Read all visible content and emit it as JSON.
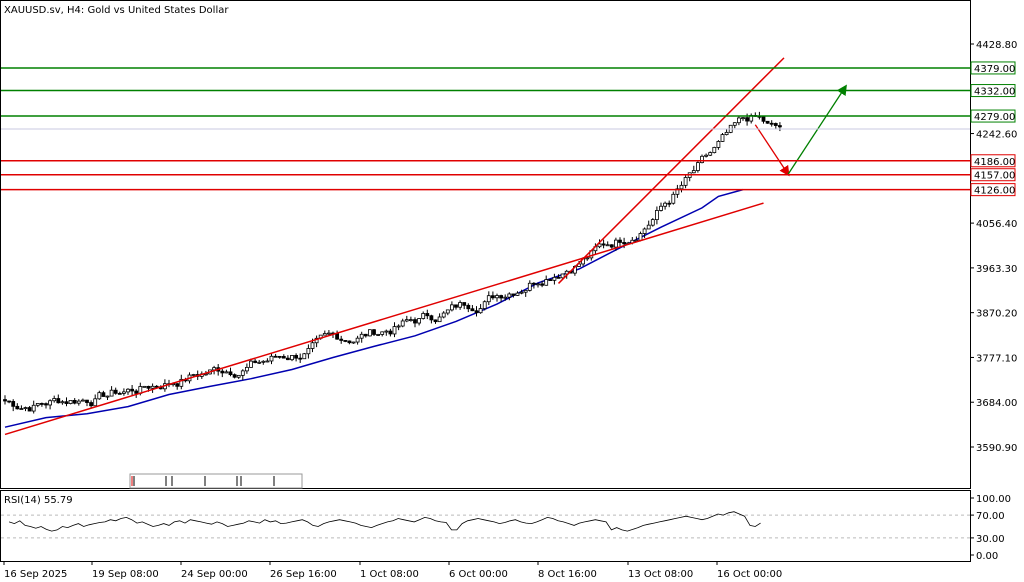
{
  "chart_title": "XAUUSD.sv, H4:  Gold vs United States Dollar",
  "rsi_title": "RSI(14) 55.79",
  "colors": {
    "candle_bull_fill": "#ffffff",
    "candle_bear_fill": "#000000",
    "candle_stroke": "#000000",
    "ma_line": "#0000b0",
    "trendline": "#e00000",
    "resistance": "#008000",
    "support": "#e00000",
    "arrow_down": "#e00000",
    "arrow_up": "#008000",
    "rsi_line": "#000000",
    "level_box_fill": "#ffffff"
  },
  "chart_data": [
    {
      "type": "candlestick",
      "title": "XAUUSD.sv, H4:  Gold vs United States Dollar",
      "ylim": [
        3548,
        4470
      ],
      "y_ticks": [
        "4428.80",
        "4242.60",
        "4056.40",
        "3963.30",
        "3870.20",
        "3777.10",
        "3684.00",
        "3590.90"
      ],
      "x_ticks": [
        "16 Sep 2025",
        "19 Sep 08:00",
        "24 Sep 00:00",
        "26 Sep 16:00",
        "1 Oct 08:00",
        "6 Oct 00:00",
        "8 Oct 16:00",
        "13 Oct 08:00",
        "16 Oct 00:00"
      ],
      "resistance_levels": [
        "4379.00",
        "4332.00",
        "4279.00"
      ],
      "support_levels": [
        "4186.00",
        "4157.00",
        "4126.00"
      ],
      "current_price": "4252.00",
      "moving_average": [
        {
          "x": 0,
          "y": 3632
        },
        {
          "x": 10,
          "y": 3652
        },
        {
          "x": 20,
          "y": 3660
        },
        {
          "x": 30,
          "y": 3675
        },
        {
          "x": 40,
          "y": 3700
        },
        {
          "x": 50,
          "y": 3717
        },
        {
          "x": 60,
          "y": 3733
        },
        {
          "x": 70,
          "y": 3752
        },
        {
          "x": 80,
          "y": 3777
        },
        {
          "x": 90,
          "y": 3800
        },
        {
          "x": 100,
          "y": 3822
        },
        {
          "x": 110,
          "y": 3852
        },
        {
          "x": 120,
          "y": 3888
        },
        {
          "x": 130,
          "y": 3932
        },
        {
          "x": 140,
          "y": 3961
        },
        {
          "x": 150,
          "y": 4005
        },
        {
          "x": 160,
          "y": 4048
        },
        {
          "x": 170,
          "y": 4088
        },
        {
          "x": 174,
          "y": 4112
        },
        {
          "x": 180,
          "y": 4126
        }
      ],
      "trendlines": [
        {
          "from": {
            "x": 0,
            "y": 3617
          },
          "to": {
            "x": 185,
            "y": 4098
          }
        },
        {
          "from": {
            "x": 135,
            "y": 3931
          },
          "to": {
            "x": 190,
            "y": 4400
          }
        }
      ],
      "projection_arrows": [
        {
          "from": {
            "x": 183,
            "y": 4261
          },
          "to": {
            "x": 191,
            "y": 4158
          },
          "direction": "down"
        },
        {
          "from": {
            "x": 191,
            "y": 4158
          },
          "to": {
            "x": 205,
            "y": 4340
          },
          "direction": "up"
        }
      ]
    },
    {
      "type": "line",
      "title": "RSI(14) 55.79",
      "ylim": [
        0,
        100
      ],
      "y_ticks": [
        "100.00",
        "70.00",
        "30.00",
        "0.00"
      ],
      "series": [
        {
          "values": [
            58,
            55,
            60,
            52,
            50,
            47,
            50,
            45,
            42,
            44,
            50,
            48,
            52,
            55,
            50,
            53,
            55,
            57,
            58,
            62,
            60,
            64,
            66,
            62,
            56,
            58,
            54,
            50,
            52,
            55,
            52,
            58,
            60,
            56,
            62,
            60,
            58,
            56,
            54,
            58,
            55,
            50,
            52,
            54,
            56,
            60,
            58,
            56,
            62,
            58,
            60,
            55,
            56,
            58,
            60,
            62,
            58,
            52,
            50,
            55,
            58,
            60,
            62,
            60,
            58,
            56,
            52,
            50,
            48,
            52,
            55,
            58,
            60,
            64,
            62,
            60,
            58,
            62,
            66,
            64,
            60,
            58,
            57,
            44,
            44,
            55,
            60,
            62,
            64,
            62,
            60,
            58,
            55,
            57,
            60,
            62,
            58,
            56,
            55,
            58,
            62,
            66,
            64,
            60,
            58,
            55,
            52,
            56,
            58,
            60,
            62,
            60,
            58,
            44,
            48,
            44,
            42,
            45,
            48,
            52,
            54,
            56,
            58,
            60,
            62,
            64,
            66,
            68,
            66,
            64,
            62,
            64,
            68,
            72,
            70,
            74,
            76,
            72,
            68,
            52,
            50,
            56
          ]
        }
      ]
    }
  ]
}
